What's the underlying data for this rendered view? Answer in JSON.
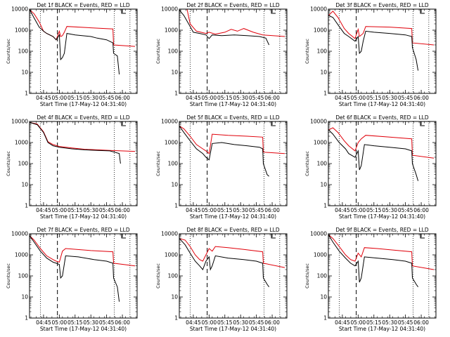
{
  "chart_data": {
    "type": "line",
    "y_scale": "log",
    "ylim": [
      1,
      10000
    ],
    "xlim": [
      "04:31",
      "06:15"
    ],
    "x_tick_labels": [
      "04:45",
      "05:00",
      "05:15",
      "05:30",
      "05:45",
      "06:00"
    ],
    "y_tick_labels": [
      "1",
      "10",
      "100",
      "1000",
      "10000"
    ],
    "ylabel": "Counts/sec",
    "xlabel": "Start Time (17-May-12 04:31:40)",
    "series_colors": {
      "events": "#000000",
      "lld": "#e0000a"
    },
    "grid": false,
    "panels": [
      {
        "title": "Det 1f BLACK = Events, RED = LLD",
        "events": [
          [
            4.53,
            9500
          ],
          [
            4.6,
            3800
          ],
          [
            4.68,
            1400
          ],
          [
            4.75,
            900
          ],
          [
            4.8,
            700
          ],
          [
            4.9,
            500
          ],
          [
            4.95,
            350
          ],
          [
            5.0,
            600
          ],
          [
            5.02,
            40
          ],
          [
            5.05,
            50
          ],
          [
            5.08,
            80
          ],
          [
            5.12,
            700
          ],
          [
            5.25,
            600
          ],
          [
            5.5,
            500
          ],
          [
            5.6,
            420
          ],
          [
            5.75,
            350
          ],
          [
            5.85,
            250
          ],
          [
            5.86,
            80
          ],
          [
            5.92,
            60
          ],
          [
            5.95,
            8
          ]
        ],
        "lld": [
          [
            4.53,
            9500
          ],
          [
            4.6,
            6000
          ],
          [
            4.68,
            2500
          ],
          [
            4.75,
            900
          ],
          [
            4.8,
            700
          ],
          [
            4.9,
            500
          ],
          [
            4.95,
            350
          ],
          [
            5.0,
            900
          ],
          [
            5.02,
            500
          ],
          [
            5.05,
            550
          ],
          [
            5.08,
            800
          ],
          [
            5.12,
            1500
          ],
          [
            5.5,
            1300
          ],
          [
            5.85,
            1150
          ],
          [
            5.86,
            200
          ],
          [
            6.2,
            170
          ]
        ]
      },
      {
        "title": "Det 2f BLACK = Events, RED = LLD",
        "events": [
          [
            4.53,
            9000
          ],
          [
            4.6,
            5000
          ],
          [
            4.7,
            1500
          ],
          [
            4.75,
            800
          ],
          [
            4.85,
            700
          ],
          [
            4.95,
            600
          ],
          [
            5.0,
            400
          ],
          [
            5.05,
            600
          ],
          [
            5.2,
            550
          ],
          [
            5.4,
            600
          ],
          [
            5.6,
            550
          ],
          [
            5.8,
            500
          ],
          [
            5.9,
            420
          ],
          [
            5.95,
            200
          ]
        ],
        "lld": [
          [
            4.53,
            10000
          ],
          [
            4.6,
            10000
          ],
          [
            4.65,
            10000
          ],
          [
            4.7,
            2000
          ],
          [
            4.8,
            900
          ],
          [
            4.95,
            700
          ],
          [
            5.0,
            800
          ],
          [
            5.1,
            650
          ],
          [
            5.25,
            800
          ],
          [
            5.35,
            1100
          ],
          [
            5.45,
            900
          ],
          [
            5.55,
            1200
          ],
          [
            5.7,
            800
          ],
          [
            5.85,
            600
          ],
          [
            6.2,
            500
          ]
        ]
      },
      {
        "title": "Det 3f BLACK = Events, RED = LLD",
        "events": [
          [
            4.53,
            5000
          ],
          [
            4.6,
            4000
          ],
          [
            4.7,
            1500
          ],
          [
            4.78,
            700
          ],
          [
            4.85,
            500
          ],
          [
            4.95,
            300
          ],
          [
            5.0,
            500
          ],
          [
            5.02,
            80
          ],
          [
            5.05,
            100
          ],
          [
            5.08,
            300
          ],
          [
            5.12,
            900
          ],
          [
            5.25,
            800
          ],
          [
            5.5,
            700
          ],
          [
            5.75,
            600
          ],
          [
            5.85,
            500
          ],
          [
            5.86,
            150
          ],
          [
            5.92,
            40
          ],
          [
            5.95,
            12
          ]
        ],
        "lld": [
          [
            4.53,
            5000
          ],
          [
            4.6,
            8000
          ],
          [
            4.68,
            4000
          ],
          [
            4.78,
            1200
          ],
          [
            4.85,
            700
          ],
          [
            4.95,
            400
          ],
          [
            5.0,
            1100
          ],
          [
            5.02,
            500
          ],
          [
            5.08,
            700
          ],
          [
            5.12,
            1500
          ],
          [
            5.5,
            1400
          ],
          [
            5.85,
            1200
          ],
          [
            5.86,
            250
          ],
          [
            6.2,
            200
          ]
        ]
      },
      {
        "title": "Det 4f BLACK = Events, RED = LLD",
        "events": [
          [
            4.53,
            9000
          ],
          [
            4.65,
            7000
          ],
          [
            4.75,
            3000
          ],
          [
            4.82,
            1000
          ],
          [
            4.9,
            700
          ],
          [
            5.0,
            600
          ],
          [
            5.2,
            500
          ],
          [
            5.4,
            450
          ],
          [
            5.6,
            420
          ],
          [
            5.8,
            400
          ],
          [
            5.95,
            300
          ],
          [
            5.97,
            100
          ]
        ],
        "lld": [
          [
            4.53,
            9000
          ],
          [
            4.65,
            7500
          ],
          [
            4.75,
            3200
          ],
          [
            4.82,
            1100
          ],
          [
            4.9,
            800
          ],
          [
            5.0,
            650
          ],
          [
            5.2,
            550
          ],
          [
            5.4,
            480
          ],
          [
            5.6,
            450
          ],
          [
            5.8,
            420
          ],
          [
            6.2,
            380
          ]
        ]
      },
      {
        "title": "Det 5f BLACK = Events, RED = LLD",
        "events": [
          [
            4.53,
            6000
          ],
          [
            4.6,
            3000
          ],
          [
            4.7,
            1200
          ],
          [
            4.8,
            500
          ],
          [
            4.9,
            300
          ],
          [
            4.95,
            200
          ],
          [
            5.0,
            150
          ],
          [
            5.05,
            900
          ],
          [
            5.2,
            1000
          ],
          [
            5.4,
            800
          ],
          [
            5.6,
            700
          ],
          [
            5.8,
            600
          ],
          [
            5.85,
            500
          ],
          [
            5.86,
            100
          ],
          [
            5.92,
            30
          ],
          [
            5.95,
            25
          ]
        ],
        "lld": [
          [
            4.53,
            6000
          ],
          [
            4.6,
            4500
          ],
          [
            4.7,
            2000
          ],
          [
            4.8,
            800
          ],
          [
            4.9,
            500
          ],
          [
            4.95,
            400
          ],
          [
            5.0,
            300
          ],
          [
            5.05,
            2500
          ],
          [
            5.3,
            2200
          ],
          [
            5.6,
            2000
          ],
          [
            5.85,
            1800
          ],
          [
            5.86,
            350
          ],
          [
            6.2,
            300
          ]
        ]
      },
      {
        "title": "Det 6f BLACK = Events, RED = LLD",
        "events": [
          [
            4.53,
            4000
          ],
          [
            4.6,
            2500
          ],
          [
            4.7,
            1000
          ],
          [
            4.8,
            500
          ],
          [
            4.85,
            300
          ],
          [
            4.95,
            200
          ],
          [
            5.0,
            400
          ],
          [
            5.02,
            50
          ],
          [
            5.05,
            80
          ],
          [
            5.1,
            800
          ],
          [
            5.25,
            700
          ],
          [
            5.5,
            600
          ],
          [
            5.75,
            500
          ],
          [
            5.85,
            400
          ],
          [
            5.86,
            100
          ],
          [
            5.92,
            30
          ],
          [
            5.95,
            15
          ]
        ],
        "lld": [
          [
            4.53,
            4000
          ],
          [
            4.6,
            5000
          ],
          [
            4.68,
            3000
          ],
          [
            4.78,
            1200
          ],
          [
            4.85,
            700
          ],
          [
            4.95,
            400
          ],
          [
            5.0,
            1000
          ],
          [
            5.05,
            1500
          ],
          [
            5.12,
            2200
          ],
          [
            5.5,
            1800
          ],
          [
            5.85,
            1500
          ],
          [
            5.86,
            250
          ],
          [
            6.2,
            180
          ]
        ]
      },
      {
        "title": "Det 7f BLACK = Events, RED = LLD",
        "events": [
          [
            4.53,
            8000
          ],
          [
            4.6,
            4000
          ],
          [
            4.7,
            1500
          ],
          [
            4.8,
            700
          ],
          [
            4.9,
            450
          ],
          [
            4.95,
            400
          ],
          [
            5.0,
            350
          ],
          [
            5.02,
            80
          ],
          [
            5.05,
            100
          ],
          [
            5.1,
            900
          ],
          [
            5.3,
            800
          ],
          [
            5.55,
            600
          ],
          [
            5.75,
            500
          ],
          [
            5.85,
            400
          ],
          [
            5.86,
            80
          ],
          [
            5.92,
            30
          ],
          [
            5.95,
            6
          ]
        ],
        "lld": [
          [
            4.53,
            8000
          ],
          [
            4.6,
            5000
          ],
          [
            4.7,
            2000
          ],
          [
            4.8,
            900
          ],
          [
            4.9,
            600
          ],
          [
            4.95,
            500
          ],
          [
            5.0,
            450
          ],
          [
            5.05,
            1500
          ],
          [
            5.1,
            2000
          ],
          [
            5.5,
            1600
          ],
          [
            5.85,
            1400
          ],
          [
            5.86,
            400
          ],
          [
            6.2,
            300
          ]
        ]
      },
      {
        "title": "Det 8f BLACK = Events, RED = LLD",
        "events": [
          [
            4.53,
            6000
          ],
          [
            4.62,
            3000
          ],
          [
            4.7,
            1200
          ],
          [
            4.78,
            500
          ],
          [
            4.85,
            300
          ],
          [
            4.9,
            200
          ],
          [
            4.95,
            500
          ],
          [
            5.0,
            800
          ],
          [
            5.02,
            200
          ],
          [
            5.05,
            300
          ],
          [
            5.1,
            900
          ],
          [
            5.3,
            700
          ],
          [
            5.55,
            600
          ],
          [
            5.75,
            500
          ],
          [
            5.85,
            400
          ],
          [
            5.86,
            80
          ],
          [
            5.92,
            40
          ],
          [
            5.95,
            30
          ]
        ],
        "lld": [
          [
            4.53,
            6000
          ],
          [
            4.62,
            5000
          ],
          [
            4.7,
            2500
          ],
          [
            4.78,
            1000
          ],
          [
            4.85,
            600
          ],
          [
            4.9,
            500
          ],
          [
            4.95,
            1000
          ],
          [
            5.0,
            2000
          ],
          [
            5.05,
            1500
          ],
          [
            5.1,
            2500
          ],
          [
            5.3,
            2200
          ],
          [
            5.55,
            1800
          ],
          [
            5.85,
            1400
          ],
          [
            5.86,
            400
          ],
          [
            6.2,
            250
          ]
        ]
      },
      {
        "title": "Det 9f BLACK = Events, RED = LLD",
        "events": [
          [
            4.53,
            9000
          ],
          [
            4.6,
            4000
          ],
          [
            4.7,
            1500
          ],
          [
            4.8,
            700
          ],
          [
            4.88,
            400
          ],
          [
            4.95,
            300
          ],
          [
            5.0,
            500
          ],
          [
            5.02,
            50
          ],
          [
            5.05,
            80
          ],
          [
            5.1,
            800
          ],
          [
            5.3,
            700
          ],
          [
            5.55,
            600
          ],
          [
            5.75,
            500
          ],
          [
            5.85,
            400
          ],
          [
            5.86,
            80
          ],
          [
            5.92,
            40
          ],
          [
            5.95,
            30
          ]
        ],
        "lld": [
          [
            4.53,
            9000
          ],
          [
            4.6,
            6000
          ],
          [
            4.7,
            2500
          ],
          [
            4.8,
            1000
          ],
          [
            4.88,
            600
          ],
          [
            4.95,
            500
          ],
          [
            5.0,
            1200
          ],
          [
            5.05,
            800
          ],
          [
            5.1,
            2200
          ],
          [
            5.3,
            2000
          ],
          [
            5.55,
            1700
          ],
          [
            5.85,
            1400
          ],
          [
            5.86,
            300
          ],
          [
            6.2,
            200
          ]
        ]
      }
    ]
  }
}
